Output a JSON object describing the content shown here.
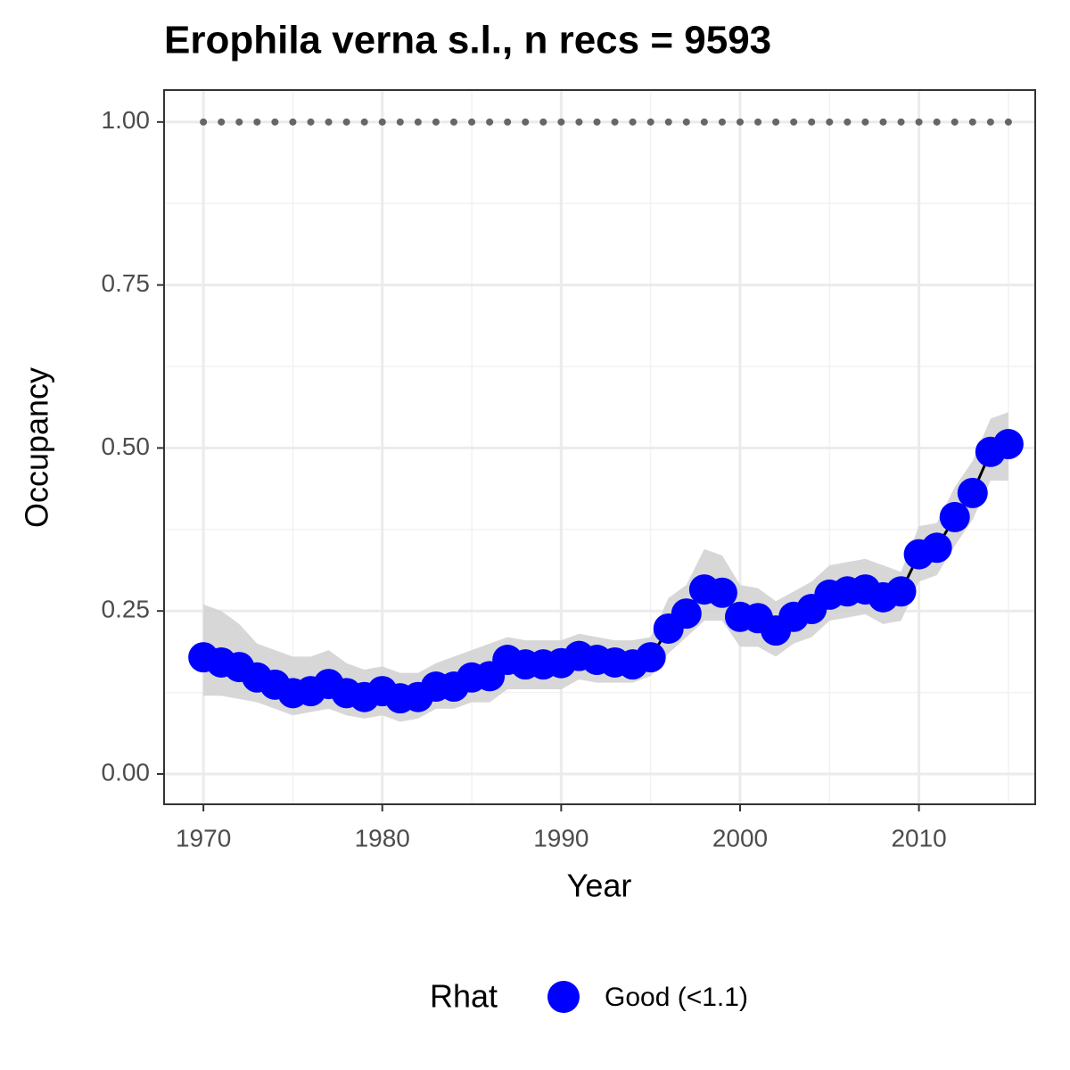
{
  "chart_data": {
    "type": "line",
    "title": "Erophila verna s.l., n recs = 9593",
    "x_label": "Year",
    "y_label": "Occupancy",
    "legend_title": "Rhat",
    "legend_position": "bottom",
    "x": [
      1970,
      1971,
      1972,
      1973,
      1974,
      1975,
      1976,
      1977,
      1978,
      1979,
      1980,
      1981,
      1982,
      1983,
      1984,
      1985,
      1986,
      1987,
      1988,
      1989,
      1990,
      1991,
      1992,
      1993,
      1994,
      1995,
      1996,
      1997,
      1998,
      1999,
      2000,
      2001,
      2002,
      2003,
      2004,
      2005,
      2006,
      2007,
      2008,
      2009,
      2010,
      2011,
      2012,
      2013,
      2014,
      2015
    ],
    "series": [
      {
        "name": "Good (<1.1)",
        "color": "#0000ff",
        "line_color": "#000000",
        "band_color": "#d3d3d3",
        "values": [
          0.179,
          0.171,
          0.164,
          0.148,
          0.137,
          0.124,
          0.127,
          0.138,
          0.124,
          0.118,
          0.127,
          0.116,
          0.118,
          0.134,
          0.134,
          0.148,
          0.15,
          0.175,
          0.168,
          0.168,
          0.17,
          0.181,
          0.175,
          0.171,
          0.168,
          0.179,
          0.223,
          0.246,
          0.283,
          0.278,
          0.241,
          0.239,
          0.22,
          0.241,
          0.253,
          0.275,
          0.28,
          0.283,
          0.271,
          0.28,
          0.337,
          0.347,
          0.394,
          0.431,
          0.494,
          0.506
        ],
        "upper": [
          0.26,
          0.25,
          0.23,
          0.2,
          0.19,
          0.18,
          0.18,
          0.19,
          0.17,
          0.16,
          0.165,
          0.155,
          0.155,
          0.17,
          0.18,
          0.19,
          0.2,
          0.21,
          0.205,
          0.205,
          0.205,
          0.215,
          0.21,
          0.205,
          0.205,
          0.21,
          0.27,
          0.29,
          0.345,
          0.335,
          0.29,
          0.285,
          0.265,
          0.28,
          0.295,
          0.32,
          0.325,
          0.33,
          0.32,
          0.31,
          0.38,
          0.385,
          0.44,
          0.48,
          0.545,
          0.555
        ],
        "lower": [
          0.12,
          0.12,
          0.115,
          0.11,
          0.1,
          0.09,
          0.095,
          0.1,
          0.09,
          0.085,
          0.09,
          0.08,
          0.085,
          0.1,
          0.1,
          0.11,
          0.11,
          0.13,
          0.13,
          0.13,
          0.13,
          0.145,
          0.14,
          0.14,
          0.14,
          0.15,
          0.185,
          0.21,
          0.235,
          0.235,
          0.195,
          0.195,
          0.18,
          0.2,
          0.21,
          0.235,
          0.24,
          0.245,
          0.23,
          0.235,
          0.295,
          0.305,
          0.35,
          0.39,
          0.45,
          0.45
        ]
      },
      {
        "color": "#666666",
        "values": [
          1,
          1,
          1,
          1,
          1,
          1,
          1,
          1,
          1,
          1,
          1,
          1,
          1,
          1,
          1,
          1,
          1,
          1,
          1,
          1,
          1,
          1,
          1,
          1,
          1,
          1,
          1,
          1,
          1,
          1,
          1,
          1,
          1,
          1,
          1,
          1,
          1,
          1,
          1,
          1,
          1,
          1,
          1,
          1,
          1,
          1
        ]
      }
    ],
    "xlim": [
      1967.8,
      2016.5
    ],
    "ylim": [
      -0.0465,
      1.049
    ],
    "xticks": [
      1970,
      1980,
      1990,
      2000,
      2010
    ],
    "yticks": [
      {
        "value": 0,
        "label": "0.00"
      },
      {
        "value": 0.25,
        "label": "0.25"
      },
      {
        "value": 0.5,
        "label": "0.50"
      },
      {
        "value": 0.75,
        "label": "0.75"
      },
      {
        "value": 1,
        "label": "1.00"
      }
    ],
    "x_minor_ticks": [
      1975,
      1985,
      1995,
      2005,
      2015
    ],
    "y_minor_ticks": [
      0.125,
      0.375,
      0.625,
      0.875
    ],
    "grid": true
  }
}
